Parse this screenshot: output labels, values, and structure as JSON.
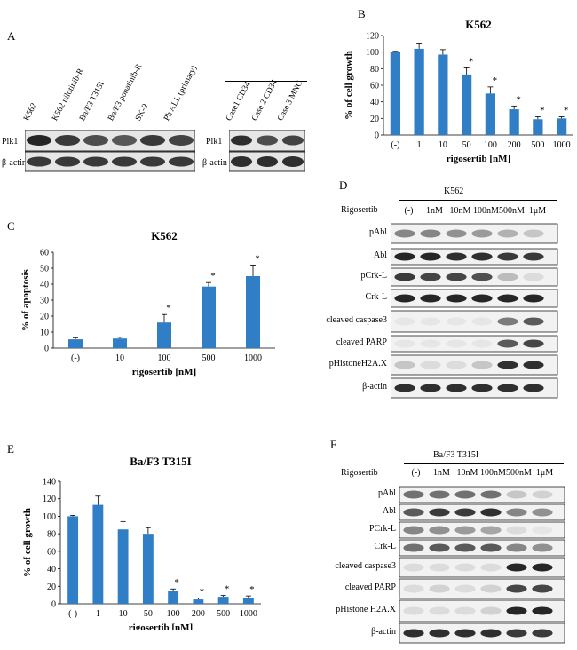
{
  "panels": {
    "A": {
      "label": "A",
      "group1_lanes": [
        "K562",
        "K562 nilotinib-R",
        "Ba/F3 T315I",
        "Ba/F3 ponatinib-R",
        "SK-9",
        "Ph ALL (primary)"
      ],
      "group2_lanes": [
        "Case1 CD34",
        "Case 2 CD34",
        "Case 3 MNC"
      ],
      "rows": [
        "Plk1",
        "β-actin"
      ]
    },
    "D": {
      "label": "D",
      "cell_line": "K562",
      "treatment": "Rigosertib",
      "conditions": [
        "(-)",
        "1nM",
        "10nM",
        "100nM",
        "500nM",
        "1μM"
      ],
      "rows": [
        "pAbl",
        "Abl",
        "pCrk-L",
        "Crk-L",
        "cleaved caspase3",
        "cleaved PARP",
        "pHistoneH2A.X",
        "β-actin"
      ]
    },
    "F": {
      "label": "F",
      "cell_line": "Ba/F3 T315I",
      "treatment": "Rigosertib",
      "conditions": [
        "(-)",
        "1nM",
        "10nM",
        "100nM",
        "500nM",
        "1μM"
      ],
      "rows": [
        "pAbl",
        "Abl",
        "PCrk-L",
        "Crk-L",
        "cleaved caspase3",
        "cleaved PARP",
        "pHistone H2A.X",
        "β-actin"
      ]
    }
  },
  "chart_data": [
    {
      "panel": "B",
      "type": "bar",
      "title": "K562",
      "xlabel": "rigosertib [nM]",
      "ylabel": "% of cell growth",
      "categories": [
        "(-)",
        "1",
        "10",
        "50",
        "100",
        "200",
        "500",
        "1000"
      ],
      "values": [
        100,
        104,
        97,
        73,
        50,
        31,
        19,
        20
      ],
      "errors": [
        1,
        7,
        6,
        8,
        8,
        4,
        3,
        2
      ],
      "significant": [
        false,
        false,
        false,
        true,
        true,
        true,
        true,
        true
      ],
      "ylim": [
        0,
        120
      ],
      "yticks": [
        0,
        20,
        40,
        60,
        80,
        100,
        120
      ],
      "color": "#2f7ec6"
    },
    {
      "panel": "C",
      "type": "bar",
      "title": "K562",
      "xlabel": "rigosertib [nM]",
      "ylabel": "% of apoptosis",
      "categories": [
        "(-)",
        "10",
        "100",
        "500",
        "1000"
      ],
      "values": [
        5.5,
        6,
        16,
        38.5,
        45
      ],
      "errors": [
        1,
        0.8,
        5,
        2.5,
        7
      ],
      "significant": [
        false,
        false,
        true,
        true,
        true
      ],
      "ylim": [
        0,
        60
      ],
      "yticks": [
        0,
        10,
        20,
        30,
        40,
        50,
        60
      ],
      "color": "#2f7ec6"
    },
    {
      "panel": "E",
      "type": "bar",
      "title": "Ba/F3 T315I",
      "xlabel": "rigosertib [nM]",
      "ylabel": "% of cell growth",
      "categories": [
        "(-)",
        "1",
        "10",
        "50",
        "100",
        "200",
        "500",
        "1000"
      ],
      "values": [
        100,
        113,
        85,
        80,
        15,
        5,
        8,
        7
      ],
      "errors": [
        1,
        10,
        9,
        7,
        2,
        1.5,
        1.5,
        2
      ],
      "significant": [
        false,
        false,
        false,
        false,
        true,
        true,
        true,
        true
      ],
      "ylim": [
        0,
        140
      ],
      "yticks": [
        0,
        20,
        40,
        60,
        80,
        100,
        120,
        140
      ],
      "color": "#2f7ec6"
    }
  ],
  "marks": {
    "star": "*"
  }
}
